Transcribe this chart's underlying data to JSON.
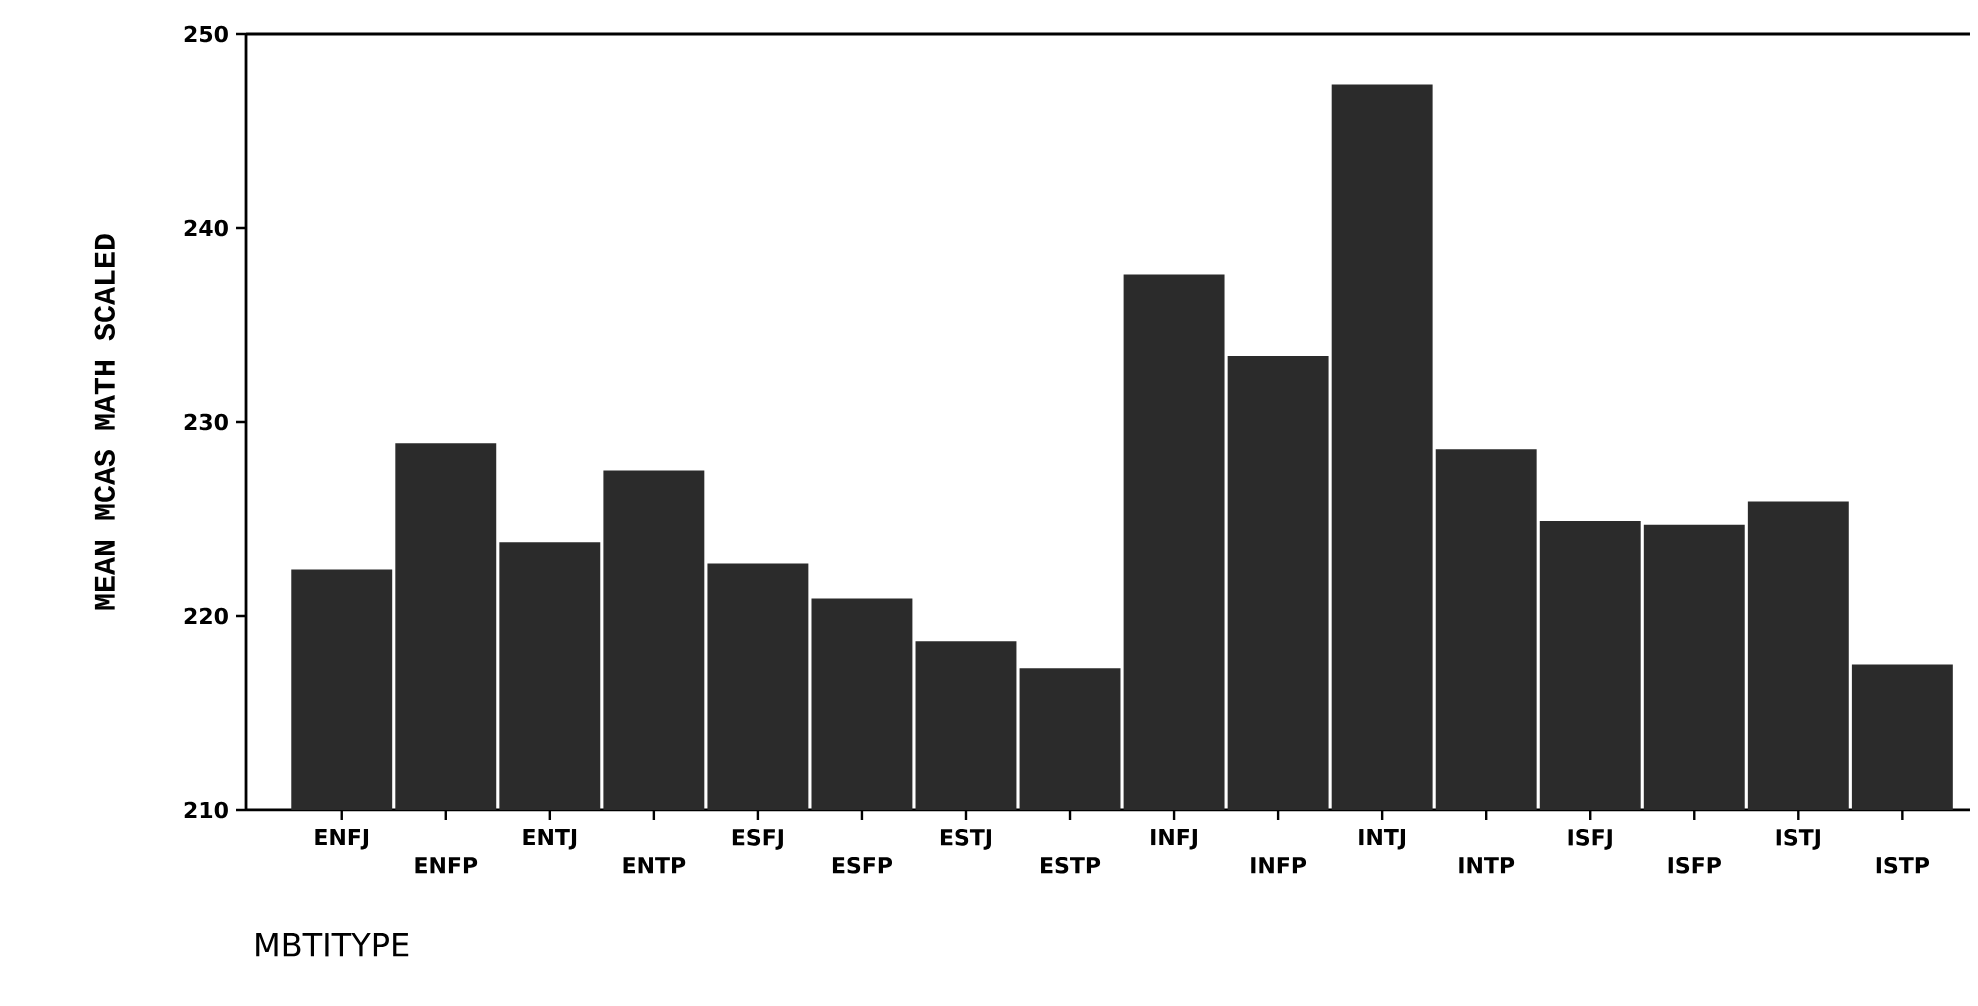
{
  "chart_data": {
    "type": "bar",
    "xlabel": "MBTITYPE",
    "ylabel": "MEAN MCAS MATH SCALED",
    "categories": [
      "ENFJ",
      "ENFP",
      "ENTJ",
      "ENTP",
      "ESFJ",
      "ESFP",
      "ESTJ",
      "ESTP",
      "INFJ",
      "INFP",
      "INTJ",
      "INTP",
      "ISFJ",
      "ISFP",
      "ISTJ",
      "ISTP"
    ],
    "values": [
      222.4,
      228.9,
      223.8,
      227.5,
      222.7,
      220.9,
      218.7,
      217.3,
      237.6,
      233.4,
      247.4,
      228.6,
      224.9,
      224.7,
      225.9,
      217.5
    ],
    "color": "#2b2b2b",
    "ylim": [
      210,
      250
    ],
    "yticks": [
      210,
      220,
      230,
      240,
      250
    ]
  }
}
